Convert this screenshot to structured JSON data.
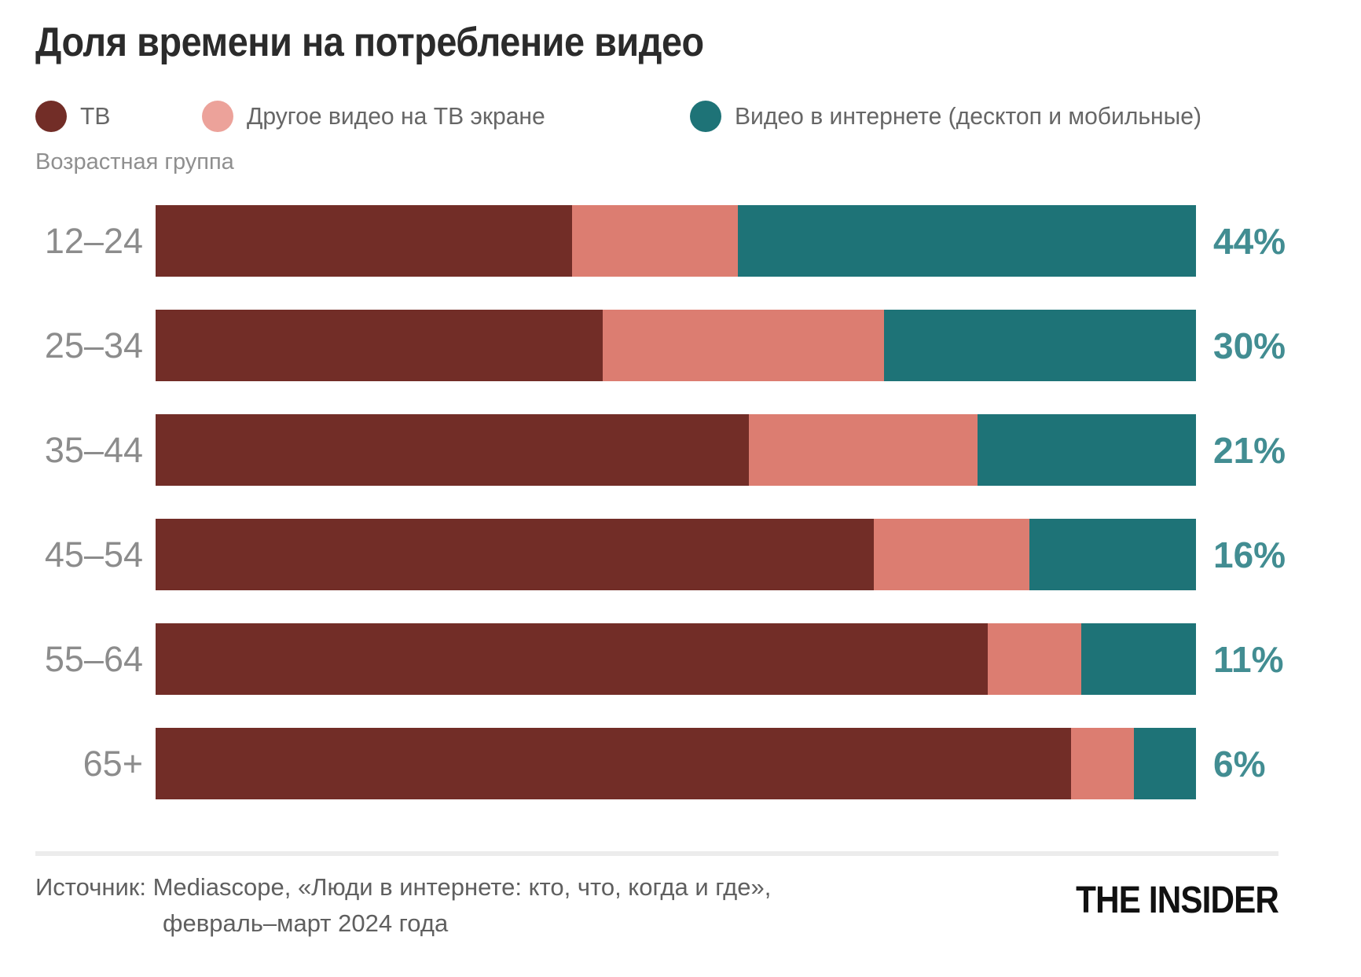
{
  "chart": {
    "title": "Доля времени на потребление видео",
    "group_axis_label": "Возрастная группа"
  },
  "legend": {
    "items": [
      {
        "label": "ТВ",
        "color": "#722D27"
      },
      {
        "label": "Другое видео на ТВ экране",
        "color": "#ECA29A"
      },
      {
        "label": "Видео в интернете (десктоп и мобильные)",
        "color": "#1E7377"
      }
    ]
  },
  "chart_data": {
    "type": "bar",
    "stacked": true,
    "orientation": "horizontal",
    "unit": "percent",
    "title": "Доля времени на потребление видео",
    "xlabel": "",
    "ylabel": "Возрастная группа",
    "xlim": [
      0,
      100
    ],
    "grid": false,
    "legend_position": "top",
    "categories": [
      "12–24",
      "25–34",
      "35–44",
      "45–54",
      "55–64",
      "65+"
    ],
    "series": [
      {
        "name": "ТВ",
        "color": "#722D27",
        "values": [
          40,
          43,
          57,
          69,
          80,
          88
        ]
      },
      {
        "name": "Другое видео на ТВ экране",
        "color": "#DC7D71",
        "values": [
          16,
          27,
          22,
          15,
          9,
          6
        ]
      },
      {
        "name": "Видео в интернете (десктоп и мобильные)",
        "color": "#1E7377",
        "values": [
          44,
          30,
          21,
          16,
          11,
          6
        ]
      }
    ],
    "value_labels": [
      "44%",
      "30%",
      "21%",
      "16%",
      "11%",
      "6%"
    ],
    "value_label_series": "Видео в интернете (десктоп и мобильные)",
    "value_label_color": "#428D92"
  },
  "footer": {
    "source_line1": "Источник: Mediascope, «Люди в интернете: кто, что, когда и где»,",
    "source_line2": "февраль–март 2024 года",
    "logo": "THE INSIDER"
  }
}
